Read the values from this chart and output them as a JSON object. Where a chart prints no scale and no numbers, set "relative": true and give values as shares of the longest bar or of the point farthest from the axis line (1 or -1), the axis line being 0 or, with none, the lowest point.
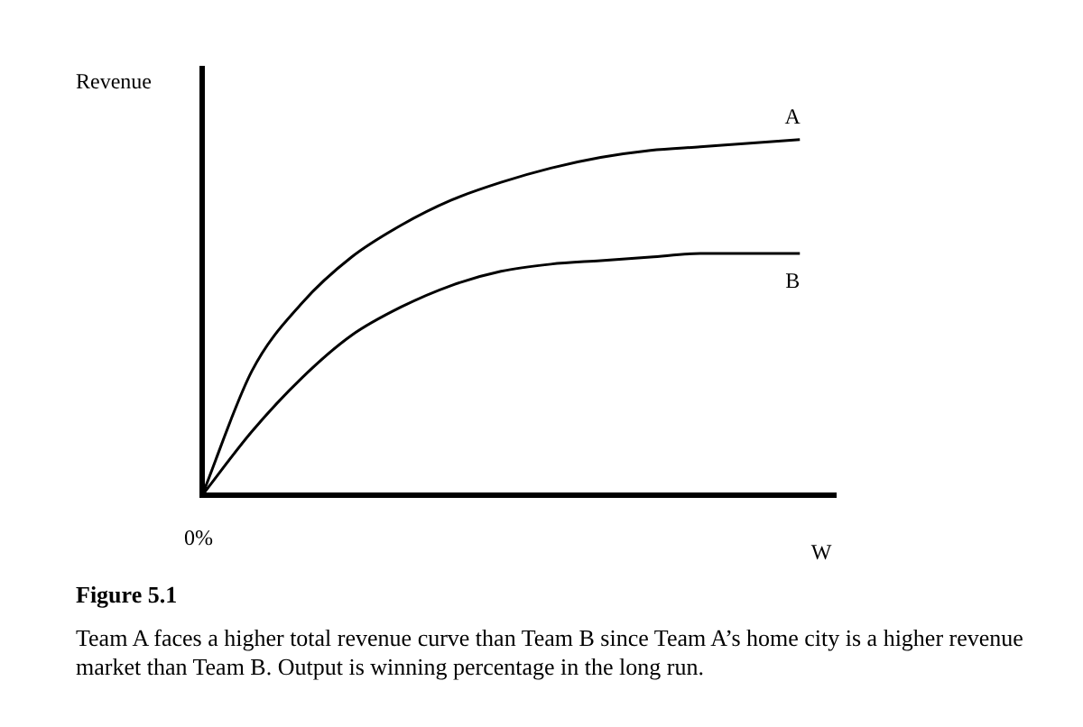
{
  "chart_data": {
    "type": "line",
    "relative": true,
    "title": "Figure 5.1",
    "ylabel": "Revenue",
    "xlabel": "W",
    "categories": [
      null,
      null,
      null,
      null,
      null,
      null,
      null,
      null,
      null,
      null,
      null,
      null,
      null
    ],
    "series": [
      {
        "name": "A",
        "color": "#000000",
        "values": [
          0,
          0.35,
          0.54,
          0.67,
          0.76,
          0.83,
          0.88,
          0.92,
          0.95,
          0.97,
          0.98,
          0.99,
          1
        ]
      },
      {
        "name": "B",
        "color": "#000000",
        "values": [
          0,
          0.18,
          0.33,
          0.45,
          0.53,
          0.59,
          0.63,
          0.65,
          0.66,
          0.67,
          0.68,
          0.68,
          0.68
        ]
      }
    ],
    "marker": "none",
    "line_style": "solid",
    "grid": false,
    "legend": false,
    "annotations": [
      "0%",
      "Team A faces a higher total revenue curve than Team B since Team A’s home city is a higher revenue market than Team B. Output is winning percentage in the long run."
    ]
  }
}
